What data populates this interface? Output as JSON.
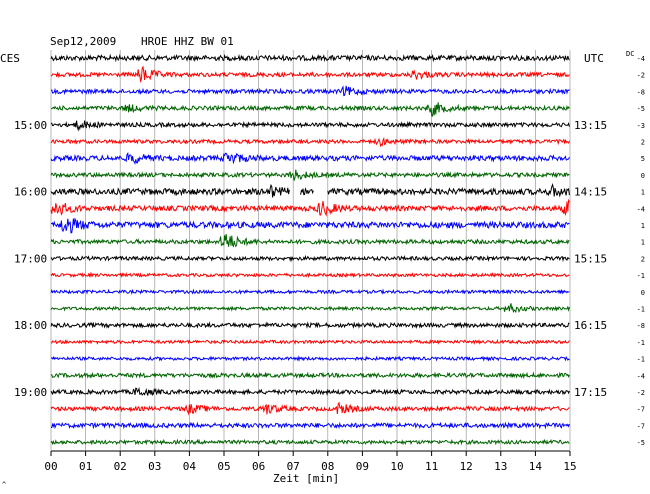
{
  "header": {
    "date": "Sep12,2009",
    "station": "HROE HHZ BW 01",
    "left_zone": "CES",
    "right_zone": "UTC",
    "dc_label": "DC"
  },
  "x_axis": {
    "label": "Zeit [min]",
    "ticks": [
      "00",
      "01",
      "02",
      "03",
      "04",
      "05",
      "06",
      "07",
      "08",
      "09",
      "10",
      "11",
      "12",
      "13",
      "14",
      "15"
    ]
  },
  "chart_data": {
    "type": "line",
    "title": "Sep12,2009  HROE HHZ BW 01",
    "xlabel": "Zeit [min]",
    "ylabel": "",
    "xlim": [
      0,
      15
    ],
    "grid": true,
    "rows": 24,
    "row_minutes": 15,
    "left_time_labels": [
      {
        "row": 4,
        "text": "15:00"
      },
      {
        "row": 8,
        "text": "16:00"
      },
      {
        "row": 12,
        "text": "17:00"
      },
      {
        "row": 16,
        "text": "18:00"
      },
      {
        "row": 20,
        "text": "19:00"
      }
    ],
    "right_time_labels": [
      {
        "row": 4,
        "text": "13:15"
      },
      {
        "row": 8,
        "text": "14:15"
      },
      {
        "row": 12,
        "text": "15:15"
      },
      {
        "row": 16,
        "text": "16:15"
      },
      {
        "row": 20,
        "text": "17:15"
      }
    ],
    "dc_offsets": [
      -4,
      -2,
      -8,
      -5,
      -3,
      2,
      5,
      0,
      1,
      -4,
      1,
      1,
      2,
      -1,
      0,
      -1,
      -8,
      -1,
      -1,
      -4,
      -2,
      -7,
      -7,
      -5
    ],
    "trace_colors": [
      "#000000",
      "#ff0000",
      "#0000ff",
      "#006400"
    ],
    "base_amplitude": [
      2.5,
      2.0,
      2.0,
      2.0,
      2.0,
      1.8,
      2.5,
      2.0,
      3.0,
      2.5,
      3.0,
      2.0,
      1.8,
      1.5,
      1.5,
      1.5,
      2.0,
      1.5,
      1.5,
      2.0,
      2.0,
      2.0,
      2.2,
      1.8
    ],
    "events": [
      {
        "row": 1,
        "minute": 2.6,
        "amplitude": 8
      },
      {
        "row": 1,
        "minute": 10.5,
        "amplitude": 4
      },
      {
        "row": 2,
        "minute": 8.5,
        "amplitude": 4
      },
      {
        "row": 3,
        "minute": 11.0,
        "amplitude": 7
      },
      {
        "row": 3,
        "minute": 2.2,
        "amplitude": 3
      },
      {
        "row": 4,
        "minute": 0.8,
        "amplitude": 4
      },
      {
        "row": 5,
        "minute": 9.5,
        "amplitude": 3
      },
      {
        "row": 6,
        "minute": 2.3,
        "amplitude": 5
      },
      {
        "row": 6,
        "minute": 5.1,
        "amplitude": 6
      },
      {
        "row": 7,
        "minute": 7.0,
        "amplitude": 5
      },
      {
        "row": 8,
        "minute": 6.3,
        "amplitude": 5
      },
      {
        "row": 8,
        "minute": 14.5,
        "amplitude": 4
      },
      {
        "row": 9,
        "minute": 0.1,
        "amplitude": 8
      },
      {
        "row": 9,
        "minute": 7.8,
        "amplitude": 7
      },
      {
        "row": 9,
        "minute": 14.9,
        "amplitude": 7
      },
      {
        "row": 10,
        "minute": 0.4,
        "amplitude": 9
      },
      {
        "row": 11,
        "minute": 5.0,
        "amplitude": 10
      },
      {
        "row": 15,
        "minute": 13.2,
        "amplitude": 5
      },
      {
        "row": 20,
        "minute": 2.5,
        "amplitude": 4
      },
      {
        "row": 21,
        "minute": 4.0,
        "amplitude": 4
      },
      {
        "row": 21,
        "minute": 6.2,
        "amplitude": 5
      },
      {
        "row": 21,
        "minute": 8.3,
        "amplitude": 5
      }
    ],
    "gaps": [
      {
        "row": 8,
        "from": 6.9,
        "to": 7.2
      },
      {
        "row": 8,
        "from": 7.6,
        "to": 8.0
      }
    ]
  }
}
